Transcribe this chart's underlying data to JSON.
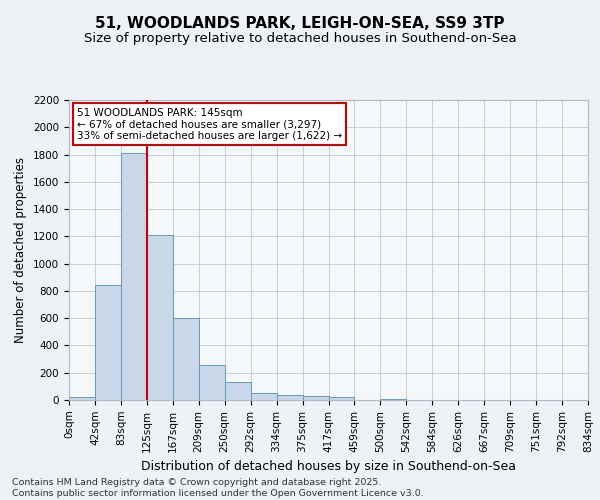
{
  "title1": "51, WOODLANDS PARK, LEIGH-ON-SEA, SS9 3TP",
  "title2": "Size of property relative to detached houses in Southend-on-Sea",
  "xlabel": "Distribution of detached houses by size in Southend-on-Sea",
  "ylabel": "Number of detached properties",
  "bin_labels": [
    "0sqm",
    "42sqm",
    "83sqm",
    "125sqm",
    "167sqm",
    "209sqm",
    "250sqm",
    "292sqm",
    "334sqm",
    "375sqm",
    "417sqm",
    "459sqm",
    "500sqm",
    "542sqm",
    "584sqm",
    "626sqm",
    "667sqm",
    "709sqm",
    "751sqm",
    "792sqm",
    "834sqm"
  ],
  "bar_values": [
    20,
    840,
    1810,
    1210,
    600,
    255,
    130,
    50,
    40,
    30,
    20,
    0,
    10,
    0,
    0,
    0,
    0,
    0,
    0,
    0
  ],
  "bar_color": "#c8d8e8",
  "bar_edge_color": "#6699bb",
  "ylim": [
    0,
    2200
  ],
  "yticks": [
    0,
    200,
    400,
    600,
    800,
    1000,
    1200,
    1400,
    1600,
    1800,
    2000,
    2200
  ],
  "vline_x": 3,
  "vline_color": "#cc0000",
  "annotation_title": "51 WOODLANDS PARK: 145sqm",
  "annotation_line1": "← 67% of detached houses are smaller (3,297)",
  "annotation_line2": "33% of semi-detached houses are larger (1,622) →",
  "annotation_box_color": "#cc0000",
  "footer_line1": "Contains HM Land Registry data © Crown copyright and database right 2025.",
  "footer_line2": "Contains public sector information licensed under the Open Government Licence v3.0.",
  "bg_color": "#eef2f6",
  "plot_bg_color": "#f5f8fb",
  "grid_color": "#c0c8d0",
  "title1_fontsize": 11,
  "title2_fontsize": 9.5,
  "xlabel_fontsize": 9,
  "ylabel_fontsize": 8.5,
  "tick_fontsize": 7.5,
  "footer_fontsize": 6.8
}
